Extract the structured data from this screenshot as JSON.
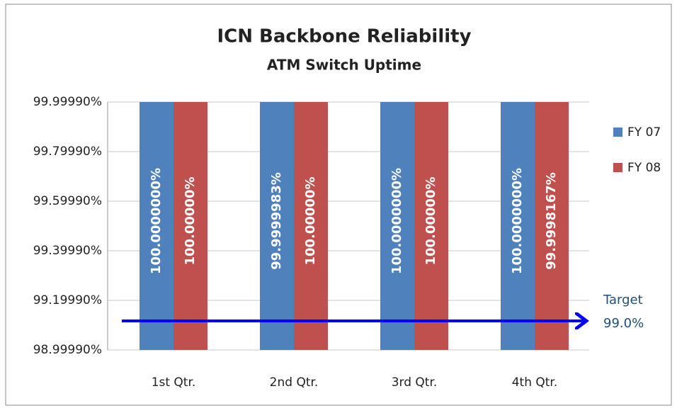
{
  "chart_data": {
    "type": "bar",
    "title": "ICN Backbone Reliability",
    "subtitle": "ATM Switch Uptime",
    "categories": [
      "1st Qtr.",
      "2nd Qtr.",
      "3rd Qtr.",
      "4th Qtr."
    ],
    "series": [
      {
        "name": "FY 07",
        "color": "#4f81bd",
        "values": [
          100.0,
          99.9999983,
          100.0,
          100.0
        ],
        "value_labels": [
          "100.0000000%",
          "99.9999983%",
          "100.0000000%",
          "100.0000000%"
        ]
      },
      {
        "name": "FY 08",
        "color": "#c0504d",
        "values": [
          100.0,
          100.0,
          100.0,
          99.9998167
        ],
        "value_labels": [
          "100.00000%",
          "100.00000%",
          "100.00000%",
          "99.9998167%"
        ]
      }
    ],
    "ylim": [
      98.9999,
      99.9999
    ],
    "yticks": [
      {
        "value": 98.9999,
        "label": "98.99990%"
      },
      {
        "value": 99.1999,
        "label": "99.19990%"
      },
      {
        "value": 99.3999,
        "label": "99.39990%"
      },
      {
        "value": 99.5999,
        "label": "99.59990%"
      },
      {
        "value": 99.7999,
        "label": "99.79990%"
      },
      {
        "value": 99.9999,
        "label": "99.99990%"
      }
    ],
    "grid": true,
    "legend": "right",
    "annotations": [
      "Target",
      "99.0%"
    ]
  }
}
